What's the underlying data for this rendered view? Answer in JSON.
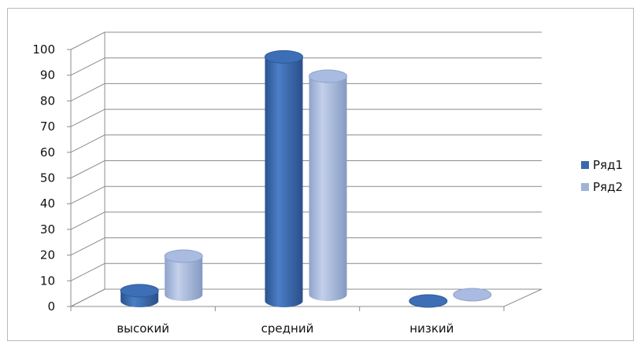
{
  "chart_data": {
    "type": "bar",
    "categories": [
      "высокий",
      "средний",
      "низкий"
    ],
    "series": [
      {
        "name": "Ряд1",
        "values": [
          4,
          95,
          0
        ],
        "color": "#3a68ac"
      },
      {
        "name": "Ряд2",
        "values": [
          15,
          85,
          0
        ],
        "color": "#9fb3d8"
      }
    ],
    "yticks": [
      "0",
      "10",
      "20",
      "30",
      "40",
      "50",
      "60",
      "70",
      "80",
      "90",
      "100"
    ],
    "ylim": [
      0,
      100
    ],
    "grid": true,
    "legend": "right",
    "style": "3d-cylinder"
  }
}
